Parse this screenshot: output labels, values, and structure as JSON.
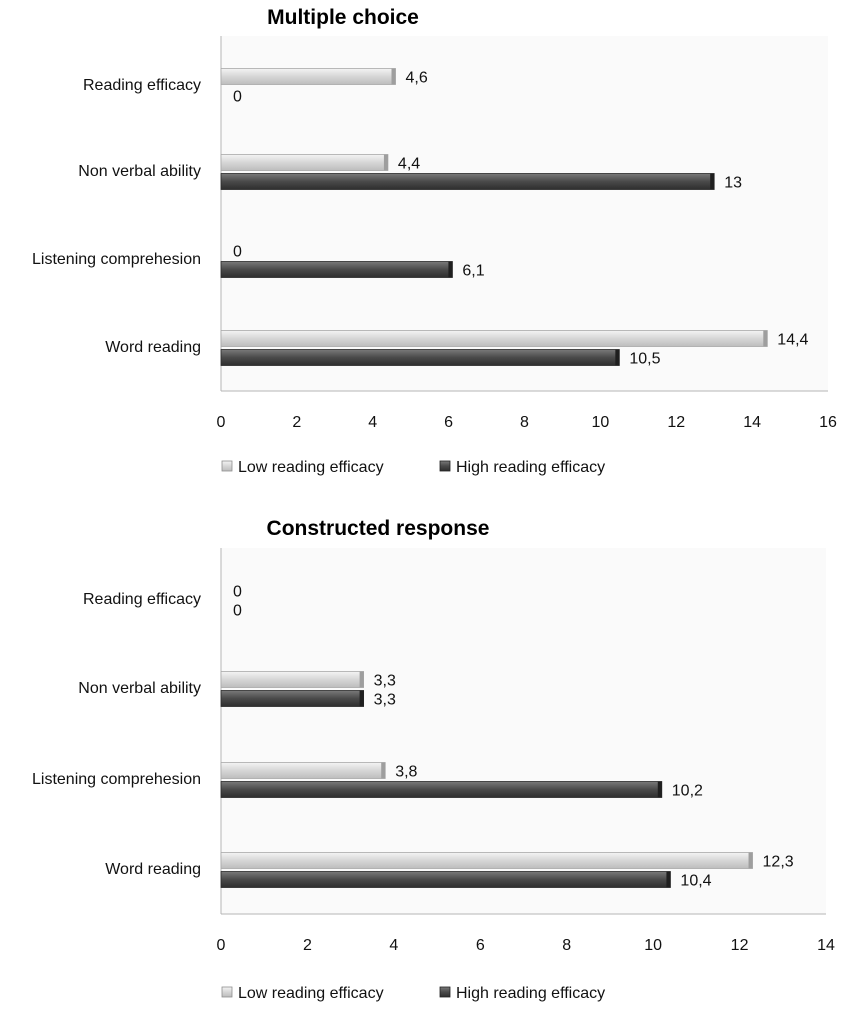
{
  "chart_data": [
    {
      "type": "bar",
      "orientation": "horizontal",
      "title": "Multiple choice",
      "categories": [
        "Word reading",
        "Listening comprehesion",
        "Non verbal ability",
        "Reading efficacy"
      ],
      "series": [
        {
          "name": "Low reading efficacy",
          "values": [
            14.4,
            0,
            4.4,
            4.6
          ],
          "labels": [
            "14,4",
            "0",
            "4,4",
            "4,6"
          ],
          "color": "#dcdcdc"
        },
        {
          "name": "High reading efficacy",
          "values": [
            10.5,
            6.1,
            13,
            0
          ],
          "labels": [
            "10,5",
            "6,1",
            "13",
            "0"
          ],
          "color": "#555555"
        }
      ],
      "xlim": [
        0,
        16
      ],
      "ticks": [
        "0",
        "2",
        "4",
        "6",
        "8",
        "10",
        "12",
        "14",
        "16"
      ],
      "legend": "bottom"
    },
    {
      "type": "bar",
      "orientation": "horizontal",
      "title": "Constructed response",
      "categories": [
        "Word reading",
        "Listening comprehesion",
        "Non verbal ability",
        "Reading efficacy"
      ],
      "series": [
        {
          "name": "Low reading efficacy",
          "values": [
            12.3,
            3.8,
            3.3,
            0
          ],
          "labels": [
            "12,3",
            "3,8",
            "3,3",
            "0"
          ],
          "color": "#dcdcdc"
        },
        {
          "name": "High reading efficacy",
          "values": [
            10.4,
            10.2,
            3.3,
            0
          ],
          "labels": [
            "10,4",
            "10,2",
            "3,3",
            "0"
          ],
          "color": "#555555"
        }
      ],
      "xlim": [
        0,
        14
      ],
      "ticks": [
        "0",
        "2",
        "4",
        "6",
        "8",
        "10",
        "12",
        "14"
      ],
      "legend": "bottom"
    }
  ]
}
